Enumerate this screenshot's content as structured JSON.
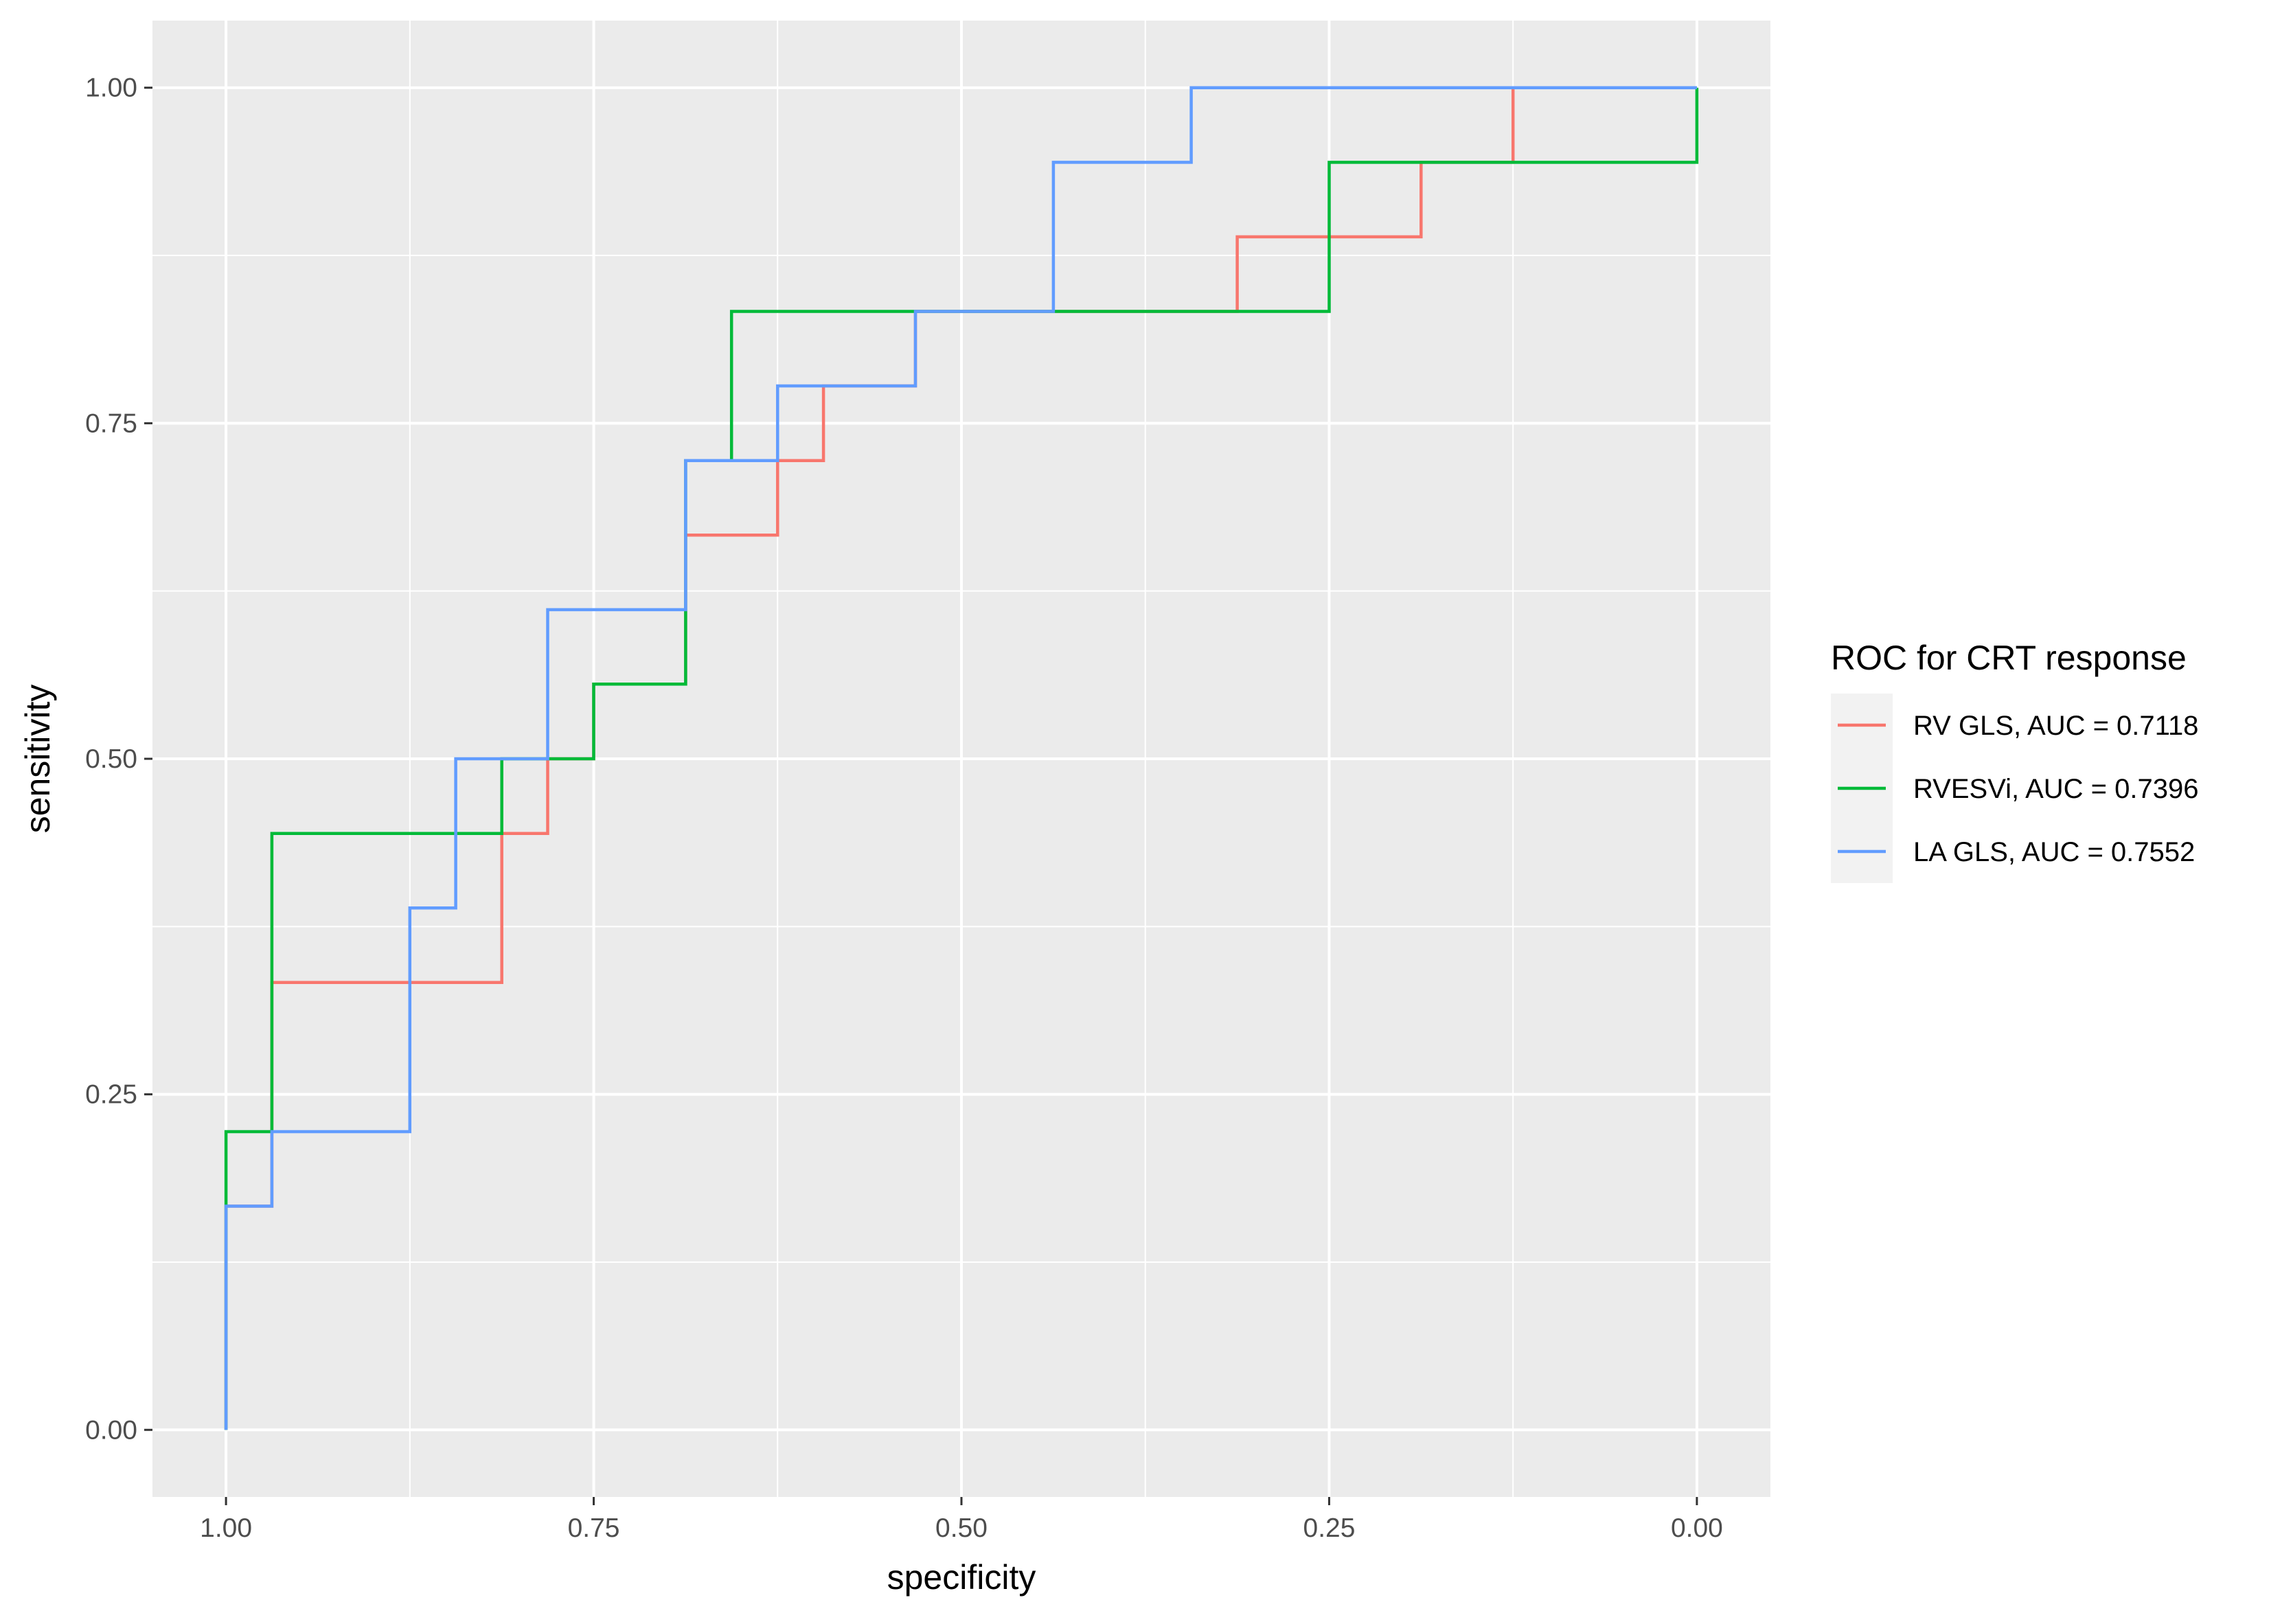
{
  "chart_data": {
    "type": "line",
    "xlabel": "specificity",
    "ylabel": "sensitivity",
    "x_reversed": true,
    "xlim": [
      1.0,
      0.0
    ],
    "ylim": [
      0.0,
      1.0
    ],
    "xticks": [
      "1.00",
      "0.75",
      "0.50",
      "0.25",
      "0.00"
    ],
    "yticks": [
      "0.00",
      "0.25",
      "0.50",
      "0.75",
      "1.00"
    ],
    "grid": true,
    "background": "#ebebeb",
    "legend_title": "ROC for CRT response",
    "legend_position": "right",
    "series": [
      {
        "name": "RV GLS, AUC = 0.7118",
        "color": "#f8766d",
        "points": [
          [
            1.0,
            0.0
          ],
          [
            1.0,
            0.1667
          ],
          [
            0.9688,
            0.1667
          ],
          [
            0.9688,
            0.3333
          ],
          [
            0.8125,
            0.3333
          ],
          [
            0.8125,
            0.4444
          ],
          [
            0.7813,
            0.4444
          ],
          [
            0.7813,
            0.5
          ],
          [
            0.75,
            0.5
          ],
          [
            0.75,
            0.5556
          ],
          [
            0.6875,
            0.5556
          ],
          [
            0.6875,
            0.6667
          ],
          [
            0.625,
            0.6667
          ],
          [
            0.625,
            0.7222
          ],
          [
            0.5938,
            0.7222
          ],
          [
            0.5938,
            0.7778
          ],
          [
            0.5313,
            0.7778
          ],
          [
            0.5313,
            0.8333
          ],
          [
            0.3125,
            0.8333
          ],
          [
            0.3125,
            0.8889
          ],
          [
            0.1875,
            0.8889
          ],
          [
            0.1875,
            0.9444
          ],
          [
            0.125,
            0.9444
          ],
          [
            0.125,
            1.0
          ],
          [
            0.0,
            1.0
          ]
        ]
      },
      {
        "name": "RVESVi, AUC = 0.7396",
        "color": "#00ba38",
        "points": [
          [
            1.0,
            0.0
          ],
          [
            1.0,
            0.2222
          ],
          [
            0.9688,
            0.2222
          ],
          [
            0.9688,
            0.4444
          ],
          [
            0.8125,
            0.4444
          ],
          [
            0.8125,
            0.5
          ],
          [
            0.75,
            0.5
          ],
          [
            0.75,
            0.5556
          ],
          [
            0.6875,
            0.5556
          ],
          [
            0.6875,
            0.7222
          ],
          [
            0.6563,
            0.7222
          ],
          [
            0.6563,
            0.8333
          ],
          [
            0.25,
            0.8333
          ],
          [
            0.25,
            0.9444
          ],
          [
            0.0,
            0.9444
          ],
          [
            0.0,
            1.0
          ]
        ]
      },
      {
        "name": "LA GLS, AUC = 0.7552",
        "color": "#619cff",
        "points": [
          [
            1.0,
            0.0
          ],
          [
            1.0,
            0.1667
          ],
          [
            0.9688,
            0.1667
          ],
          [
            0.9688,
            0.2222
          ],
          [
            0.875,
            0.2222
          ],
          [
            0.875,
            0.3889
          ],
          [
            0.8438,
            0.3889
          ],
          [
            0.8438,
            0.5
          ],
          [
            0.7813,
            0.5
          ],
          [
            0.7813,
            0.6111
          ],
          [
            0.6875,
            0.6111
          ],
          [
            0.6875,
            0.7222
          ],
          [
            0.625,
            0.7222
          ],
          [
            0.625,
            0.7778
          ],
          [
            0.5313,
            0.7778
          ],
          [
            0.5313,
            0.8333
          ],
          [
            0.4375,
            0.8333
          ],
          [
            0.4375,
            0.9444
          ],
          [
            0.3438,
            0.9444
          ],
          [
            0.3438,
            1.0
          ],
          [
            0.0,
            1.0
          ]
        ]
      }
    ]
  }
}
